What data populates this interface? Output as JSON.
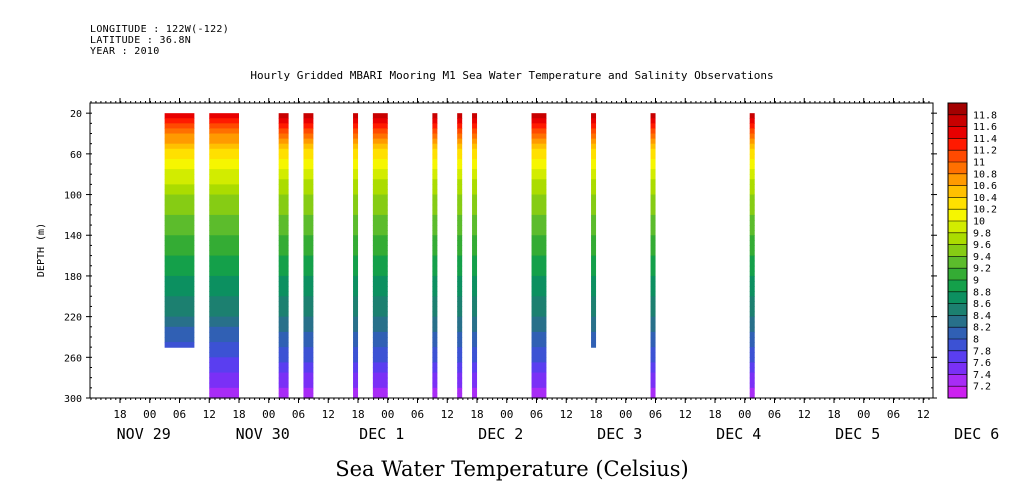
{
  "header": {
    "longitude": "LONGITUDE : 122W(-122)",
    "latitude": "LATITUDE : 36.8N",
    "year": "YEAR : 2010"
  },
  "chart_data": {
    "type": "heatmap",
    "title": "Hourly Gridded MBARI Mooring M1 Sea Water Temperature and Salinity Observations",
    "xlabel": "Sea Water Temperature (Celsius)",
    "ylabel": "DEPTH (m)",
    "y_ticks": [
      20,
      60,
      100,
      140,
      180,
      220,
      260,
      300
    ],
    "ylim": [
      10,
      300
    ],
    "y_direction": "downward",
    "x_hour_ticks": [
      "18",
      "00",
      "06",
      "12",
      "18",
      "00",
      "06",
      "12",
      "18",
      "00",
      "06",
      "12",
      "18",
      "00",
      "06",
      "12",
      "18",
      "00",
      "06",
      "12",
      "18",
      "00",
      "06",
      "12",
      "18",
      "00",
      "06",
      "12"
    ],
    "x_day_labels": [
      "NOV 29",
      "NOV 30",
      "DEC  1",
      "DEC  2",
      "DEC  3",
      "DEC  4",
      "DEC  5",
      "DEC  6"
    ],
    "colorbar": {
      "labels": [
        "11.8",
        "11.6",
        "11.4",
        "11.2",
        "11",
        "10.8",
        "10.6",
        "10.4",
        "10.2",
        "10",
        "9.8",
        "9.6",
        "9.4",
        "9.2",
        "9",
        "8.8",
        "8.6",
        "8.4",
        "8.2",
        "8",
        "7.8",
        "7.6",
        "7.4",
        "7.2"
      ],
      "colors": [
        "#a30000",
        "#c80000",
        "#e80000",
        "#ff1a00",
        "#ff4a00",
        "#ff7000",
        "#ff9a00",
        "#ffc000",
        "#ffe000",
        "#f6f600",
        "#d2ec00",
        "#abdc00",
        "#86cc14",
        "#5cbc2c",
        "#34ac34",
        "#14a04a",
        "#0c9060",
        "#1c8070",
        "#28708a",
        "#3060b4",
        "#3c52d4",
        "#5a3ef0",
        "#7a30f6",
        "#a82cf6",
        "#cc20f0"
      ]
    },
    "data_segments": [
      {
        "start_hour": 3,
        "end_hour": 9,
        "max_depth": 250
      },
      {
        "start_hour": 12,
        "end_hour": 18,
        "max_depth": 300
      },
      {
        "start_hour": 26,
        "end_hour": 28,
        "max_depth": 300
      },
      {
        "start_hour": 31,
        "end_hour": 33,
        "max_depth": 300
      },
      {
        "start_hour": 41,
        "end_hour": 42,
        "max_depth": 300
      },
      {
        "start_hour": 45,
        "end_hour": 48,
        "max_depth": 300
      },
      {
        "start_hour": 57,
        "end_hour": 58,
        "max_depth": 300
      },
      {
        "start_hour": 62,
        "end_hour": 63,
        "max_depth": 300
      },
      {
        "start_hour": 65,
        "end_hour": 66,
        "max_depth": 300
      },
      {
        "start_hour": 77,
        "end_hour": 80,
        "max_depth": 300
      },
      {
        "start_hour": 89,
        "end_hour": 90,
        "max_depth": 250
      },
      {
        "start_hour": 101,
        "end_hour": 102,
        "max_depth": 300
      },
      {
        "start_hour": 121,
        "end_hour": 122,
        "max_depth": 300
      }
    ],
    "depth_profile_temperature": [
      {
        "depth": 20,
        "value": 11.8
      },
      {
        "depth": 30,
        "value": 11.3
      },
      {
        "depth": 40,
        "value": 10.9
      },
      {
        "depth": 50,
        "value": 10.6
      },
      {
        "depth": 60,
        "value": 10.3
      },
      {
        "depth": 70,
        "value": 10.1
      },
      {
        "depth": 80,
        "value": 9.9
      },
      {
        "depth": 100,
        "value": 9.6
      },
      {
        "depth": 120,
        "value": 9.4
      },
      {
        "depth": 150,
        "value": 9.1
      },
      {
        "depth": 180,
        "value": 8.8
      },
      {
        "depth": 210,
        "value": 8.5
      },
      {
        "depth": 240,
        "value": 8.1
      },
      {
        "depth": 270,
        "value": 7.7
      },
      {
        "depth": 300,
        "value": 7.2
      }
    ]
  }
}
